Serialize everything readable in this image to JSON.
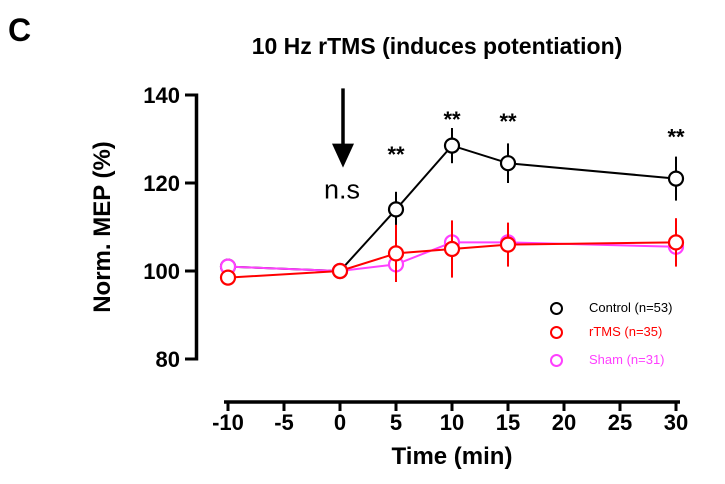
{
  "panel_label": "C",
  "chart_data": {
    "type": "line",
    "title": "10 Hz rTMS (induces potentiation)",
    "xlabel": "Time (min)",
    "ylabel": "Norm. MEP (%)",
    "xlim": [
      -10,
      30
    ],
    "ylim": [
      80,
      140
    ],
    "x_ticks": [
      -10,
      -5,
      0,
      5,
      10,
      15,
      20,
      25,
      30
    ],
    "y_ticks": [
      80,
      100,
      120,
      140
    ],
    "grid": false,
    "legend_position": "inside-bottom-right",
    "x": [
      -10,
      0,
      5,
      10,
      15,
      30
    ],
    "series": [
      {
        "name": "Control",
        "legend_label": "Control (n=53)",
        "color": "#000000",
        "values": [
          101,
          100,
          114,
          128.5,
          124.5,
          121
        ],
        "errors": [
          0,
          0,
          4,
          4,
          4.5,
          5
        ]
      },
      {
        "name": "Sham",
        "legend_label": "Sham (n=31)",
        "color": "#FF40FF",
        "values": [
          101,
          100,
          101.5,
          106.5,
          106.5,
          105.5
        ],
        "errors": [
          0,
          0,
          3,
          3.5,
          3.5,
          3
        ]
      },
      {
        "name": "rTMS",
        "legend_label": "rTMS (n=35)",
        "color": "#FF0000",
        "values": [
          98.5,
          100,
          104,
          105,
          106,
          106.5
        ],
        "errors": [
          0,
          0,
          6.5,
          6.5,
          5,
          5.5
        ]
      }
    ],
    "draw_order": [
      "Control",
      "Sham",
      "rTMS"
    ],
    "annotations": {
      "arrow": {
        "time": 0,
        "from_value": 141.5,
        "tip_value": 123.5
      },
      "ns_label": {
        "text": "n.s",
        "time": 0,
        "value": 118.5
      },
      "significance": [
        {
          "label": "**",
          "time": 5,
          "value": 127
        },
        {
          "label": "**",
          "time": 10,
          "value": 135
        },
        {
          "label": "**",
          "time": 15,
          "value": 134.5
        },
        {
          "label": "**",
          "time": 30,
          "value": 131
        }
      ]
    }
  }
}
